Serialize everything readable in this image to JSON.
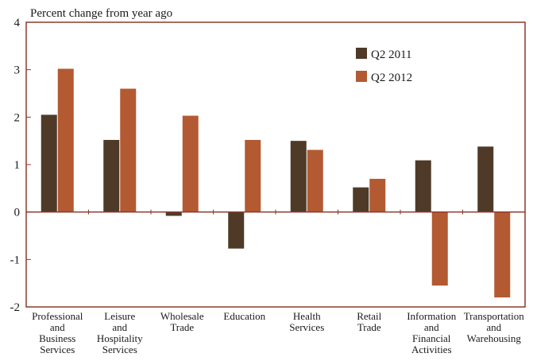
{
  "chart_data": {
    "type": "bar",
    "ylabel": "Percent change from year ago",
    "xlabel": "",
    "ylim": [
      -2,
      4
    ],
    "yticks": [
      4,
      3,
      2,
      1,
      0,
      -1,
      -2
    ],
    "categories": [
      [
        "Professional",
        "and",
        "Business",
        "Services"
      ],
      [
        "Leisure",
        "and",
        "Hospitality",
        "Services"
      ],
      [
        "Wholesale",
        "Trade"
      ],
      [
        "Education"
      ],
      [
        "Health",
        "Services"
      ],
      [
        "Retail",
        "Trade"
      ],
      [
        "Information",
        "and",
        "Financial",
        "Activities"
      ],
      [
        "Transportation",
        "and",
        "Warehousing"
      ]
    ],
    "series": [
      {
        "name": "Q2 2011",
        "color": "#4f3a28",
        "values": [
          2.05,
          1.52,
          -0.08,
          -0.77,
          1.5,
          0.52,
          1.09,
          1.38
        ]
      },
      {
        "name": "Q2 2012",
        "color": "#b35a33",
        "values": [
          3.02,
          2.6,
          2.03,
          1.52,
          1.31,
          0.7,
          -1.55,
          -1.8
        ]
      }
    ],
    "legend_position": "top-right",
    "grid": false
  }
}
